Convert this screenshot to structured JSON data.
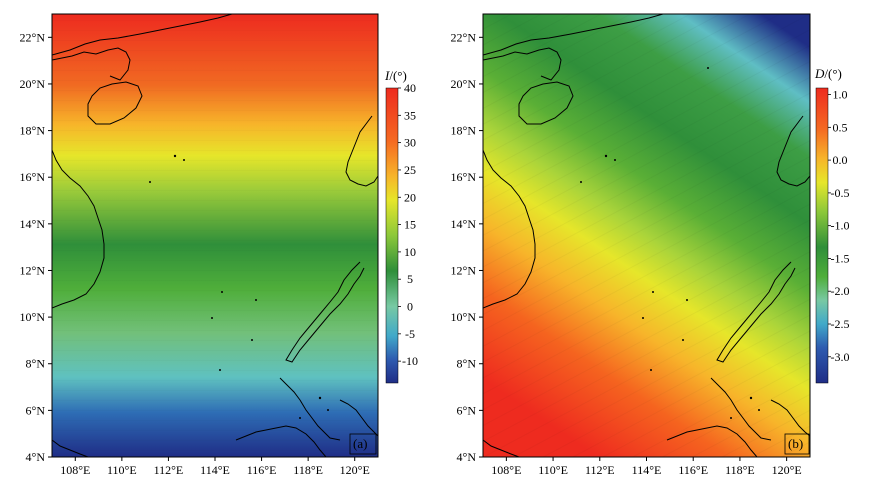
{
  "figure": {
    "panels": [
      {
        "id": "a",
        "panel_label": "(a)",
        "colorbar_title_symbol": "I",
        "colorbar_title_unit": "/(°)",
        "colorbar_ticks": [
          "40",
          "35",
          "30",
          "25",
          "20",
          "15",
          "10",
          "5",
          "0",
          "-5",
          "-10"
        ],
        "colorbar_tick_values": [
          40,
          35,
          30,
          25,
          20,
          15,
          10,
          5,
          0,
          -5,
          -10
        ],
        "colorbar_range": [
          -14,
          40
        ],
        "lat_tick_labels": [
          "22°N",
          "20°N",
          "18°N",
          "16°N",
          "14°N",
          "12°N",
          "10°N",
          "8°N",
          "6°N",
          "4°N"
        ],
        "lon_tick_labels": [
          "108°E",
          "110°E",
          "112°E",
          "114°E",
          "116°E",
          "118°E",
          "120°E"
        ]
      },
      {
        "id": "b",
        "panel_label": "(b)",
        "colorbar_title_symbol": "D",
        "colorbar_title_unit": "/(°)",
        "colorbar_ticks": [
          "1.0",
          "0.5",
          "0.0",
          "-0.5",
          "-1.0",
          "-1.5",
          "-2.0",
          "-2.5",
          "-3.0"
        ],
        "colorbar_tick_values": [
          1.0,
          0.5,
          0.0,
          -0.5,
          -1.0,
          -1.5,
          -2.0,
          -2.5,
          -3.0
        ],
        "colorbar_range": [
          -3.4,
          1.1
        ],
        "lat_tick_labels": [
          "22°N",
          "20°N",
          "18°N",
          "16°N",
          "14°N",
          "12°N",
          "10°N",
          "8°N",
          "6°N",
          "4°N"
        ],
        "lon_tick_labels": [
          "108°E",
          "110°E",
          "112°E",
          "114°E",
          "116°E",
          "118°E",
          "120°E"
        ]
      }
    ],
    "colors": {
      "ramp": [
        "#1f2d86",
        "#2e5bb0",
        "#41a9c9",
        "#78c9a3",
        "#2f8f3a",
        "#4fae3a",
        "#8cc83a",
        "#e6e62a",
        "#f7b52a",
        "#f56a22",
        "#ee2b1f"
      ],
      "coastline": "#000000",
      "frame": "#000000"
    },
    "map_extent": {
      "lon": [
        107,
        121
      ],
      "lat": [
        4,
        23
      ]
    }
  }
}
